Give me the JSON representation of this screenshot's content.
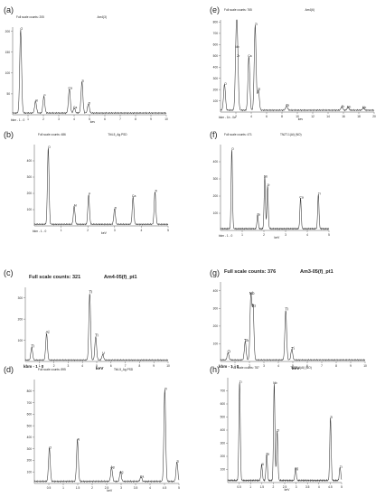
{
  "chart_data": [
    {
      "panel_label": "(a)",
      "header": "Full scale counts: 205",
      "sample": "Am4(3)",
      "type": "line",
      "xlabel": "keV",
      "kev_caption": "kev",
      "footer_left": "bkm - 1 - 0",
      "xlim": [
        0,
        10
      ],
      "ylim": [
        0,
        210
      ],
      "y_ticks": [
        50,
        100,
        150,
        200
      ],
      "x_ticks": [
        1,
        2,
        3,
        4,
        5,
        6,
        7,
        8,
        9,
        10
      ],
      "peaks": [
        {
          "x": 0.52,
          "y": 200,
          "label": "O"
        },
        {
          "x": 1.49,
          "y": 28,
          "label": "Al"
        },
        {
          "x": 2.03,
          "y": 40,
          "label": "P"
        },
        {
          "x": 3.69,
          "y": 58,
          "label": "Ca"
        },
        {
          "x": 4.01,
          "y": 12,
          "label": "Ca"
        },
        {
          "x": 4.51,
          "y": 75,
          "label": "Ti"
        },
        {
          "x": 4.93,
          "y": 22,
          "label": "Ti"
        }
      ]
    },
    {
      "panel_label": "(e)",
      "header": "Full scale counts: 765",
      "sample": "Am4(6)",
      "type": "line",
      "xlabel": "keV",
      "kev_caption": "kev",
      "footer_left": "bkm - 1b - 0c",
      "xlim": [
        0,
        20
      ],
      "ylim": [
        0,
        820
      ],
      "y_ticks": [
        100,
        200,
        300,
        400,
        500,
        600,
        700,
        800
      ],
      "x_ticks": [
        2,
        4,
        6,
        8,
        10,
        12,
        14,
        16,
        18,
        20
      ],
      "peaks": [
        {
          "x": 0.52,
          "y": 230,
          "label": "O"
        },
        {
          "x": 2.04,
          "y": 560,
          "label": "Nb"
        },
        {
          "x": 2.2,
          "y": 480,
          "label": "Zr"
        },
        {
          "x": 3.69,
          "y": 480,
          "label": "Ca"
        },
        {
          "x": 4.51,
          "y": 760,
          "label": "Ti"
        },
        {
          "x": 4.93,
          "y": 180,
          "label": "Ti"
        },
        {
          "x": 8.6,
          "y": 40,
          "label": "Ta"
        },
        {
          "x": 15.8,
          "y": 30,
          "label": "Zr"
        },
        {
          "x": 16.6,
          "y": 25,
          "label": "Nb"
        },
        {
          "x": 18.6,
          "y": 20,
          "label": "Nb"
        }
      ]
    },
    {
      "panel_label": "(b)",
      "header": "Full scale counts: 486",
      "sample": "Tit4-5_Ag.PSD",
      "type": "line",
      "xlabel": "keV",
      "kev_caption": "keV",
      "footer_left": "bkm - 1 - 0",
      "xlim": [
        0,
        5
      ],
      "ylim": [
        0,
        500
      ],
      "y_ticks": [
        100,
        200,
        300,
        400
      ],
      "x_ticks": [
        1,
        2,
        3,
        4,
        5
      ],
      "peaks": [
        {
          "x": 0.52,
          "y": 470,
          "label": "O"
        },
        {
          "x": 1.49,
          "y": 110,
          "label": "Al"
        },
        {
          "x": 2.03,
          "y": 180,
          "label": "P"
        },
        {
          "x": 3.0,
          "y": 95,
          "label": "Ti"
        },
        {
          "x": 3.69,
          "y": 170,
          "label": "Ca"
        },
        {
          "x": 4.51,
          "y": 200,
          "label": "Ti"
        }
      ]
    },
    {
      "panel_label": "(f)",
      "header": "Full scale counts: 471",
      "sample": "TNZT-1(Al) (NO)",
      "type": "line",
      "xlabel": "keV",
      "kev_caption": "keV",
      "footer_left": "bkm - 1 - 0",
      "xlim": [
        0,
        5
      ],
      "ylim": [
        0,
        500
      ],
      "y_ticks": [
        100,
        200,
        300,
        400
      ],
      "x_ticks": [
        1,
        2,
        3,
        4,
        5
      ],
      "peaks": [
        {
          "x": 0.52,
          "y": 460,
          "label": "O"
        },
        {
          "x": 2.04,
          "y": 300,
          "label": "Nb"
        },
        {
          "x": 2.17,
          "y": 250,
          "label": "Zr"
        },
        {
          "x": 1.71,
          "y": 80,
          "label": "Ta"
        },
        {
          "x": 3.69,
          "y": 180,
          "label": "Ca"
        },
        {
          "x": 4.51,
          "y": 200,
          "label": "Ti"
        }
      ]
    },
    {
      "panel_label": "(c)",
      "header": "Full scale counts: 321",
      "sample": "Am4-05(f)_pt1",
      "type": "line",
      "xlabel": "keV",
      "kev_caption": "keV",
      "footer_left": "kbm - 1 - 0",
      "xlim": [
        0,
        10
      ],
      "ylim": [
        0,
        350
      ],
      "y_ticks": [
        100,
        200,
        300
      ],
      "x_ticks": [
        1,
        2,
        3,
        4,
        5,
        6,
        7,
        8,
        9,
        10
      ],
      "peaks": [
        {
          "x": 0.45,
          "y": 60,
          "label": "Ti"
        },
        {
          "x": 1.49,
          "y": 125,
          "label": "Al"
        },
        {
          "x": 4.51,
          "y": 315,
          "label": "Ti"
        },
        {
          "x": 4.93,
          "y": 110,
          "label": "Ti"
        },
        {
          "x": 5.42,
          "y": 25,
          "label": "V"
        }
      ]
    },
    {
      "panel_label": "(g)",
      "header": "Full scale counts: 376",
      "sample": "Am3-05(f)_pt1",
      "type": "line",
      "xlabel": "keV",
      "kev_caption": "keV",
      "footer_left": "kbm - 1 - 0",
      "xlim": [
        0,
        10
      ],
      "ylim": [
        0,
        450
      ],
      "y_ticks": [
        100,
        200,
        300,
        400
      ],
      "x_ticks": [
        1,
        2,
        3,
        4,
        5,
        6,
        7,
        8,
        9,
        10
      ],
      "peaks": [
        {
          "x": 0.52,
          "y": 40,
          "label": "O"
        },
        {
          "x": 1.71,
          "y": 105,
          "label": "Ta"
        },
        {
          "x": 2.1,
          "y": 370,
          "label": "Nb"
        },
        {
          "x": 2.25,
          "y": 300,
          "label": "Zr"
        },
        {
          "x": 4.51,
          "y": 280,
          "label": "Ti"
        },
        {
          "x": 4.93,
          "y": 60,
          "label": "Ti"
        }
      ]
    },
    {
      "panel_label": "(d)",
      "header": "Full scale counts: 895",
      "sample": "Tit4-5_Ag.PSD",
      "type": "line",
      "xlabel": "keV",
      "kev_caption": "keV",
      "footer_left": "",
      "xlim": [
        0,
        5
      ],
      "ylim": [
        0,
        900
      ],
      "y_ticks": [
        100,
        200,
        300,
        400,
        500,
        600,
        700,
        800
      ],
      "x_ticks": [
        0.5,
        1,
        1.5,
        2,
        2.5,
        3,
        3.5,
        4,
        4.5,
        5
      ],
      "peaks": [
        {
          "x": 0.52,
          "y": 290,
          "label": "O"
        },
        {
          "x": 1.49,
          "y": 360,
          "label": "Al"
        },
        {
          "x": 2.67,
          "y": 120,
          "label": "Ag"
        },
        {
          "x": 2.98,
          "y": 80,
          "label": "Ag"
        },
        {
          "x": 3.69,
          "y": 40,
          "label": "Ca"
        },
        {
          "x": 4.51,
          "y": 800,
          "label": "Ti"
        },
        {
          "x": 4.93,
          "y": 170,
          "label": "Ti"
        }
      ]
    },
    {
      "panel_label": "(h)",
      "header": "Full scale counts: 787",
      "sample": "TNZT-1(Al) (NO)",
      "type": "line",
      "xlabel": "keV",
      "kev_caption": "keV",
      "footer_left": "",
      "xlim": [
        0,
        5
      ],
      "ylim": [
        0,
        800
      ],
      "y_ticks": [
        100,
        200,
        300,
        400,
        500,
        600,
        700
      ],
      "x_ticks": [
        0.5,
        1,
        1.5,
        2,
        2.5,
        3,
        3.5,
        4,
        4.5,
        5
      ],
      "peaks": [
        {
          "x": 0.52,
          "y": 750,
          "label": "Ti"
        },
        {
          "x": 1.49,
          "y": 120,
          "label": "Al"
        },
        {
          "x": 2.04,
          "y": 740,
          "label": "Nb"
        },
        {
          "x": 2.17,
          "y": 380,
          "label": "Zr"
        },
        {
          "x": 1.71,
          "y": 200,
          "label": "Ta"
        },
        {
          "x": 2.98,
          "y": 90,
          "label": "Ag"
        },
        {
          "x": 4.51,
          "y": 480,
          "label": "Ti"
        },
        {
          "x": 4.93,
          "y": 100,
          "label": "Ti"
        }
      ]
    }
  ]
}
